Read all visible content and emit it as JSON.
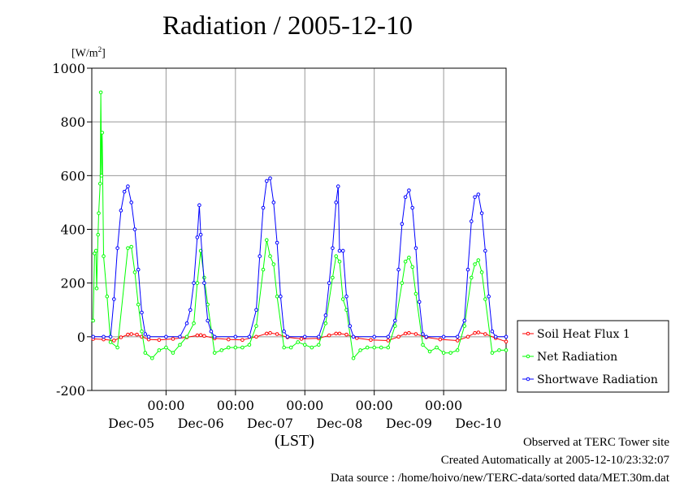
{
  "title": "Radiation / 2005-12-10",
  "ylabel_unit": "[W/m",
  "ylabel_sup": "2",
  "ylabel_close": "]",
  "xlabel": "(LST)",
  "footer": {
    "observed": "Observed at TERC Tower site",
    "created": "Created Automatically at 2005-12-10/23:32:07",
    "source": "Data source : /home/hoivo/new/TERC-data/sorted  data/MET.30m.dat"
  },
  "colors": {
    "soil": "#ff0000",
    "net": "#00ff00",
    "shortwave": "#0000ff",
    "grid": "#999999"
  },
  "chart_data": {
    "type": "line",
    "title": "Radiation / 2005-12-10",
    "ylabel": "[W/m2]",
    "xlabel": "(LST)",
    "ylim": [
      -200,
      1000
    ],
    "yticks": [
      "1000",
      "800",
      "600",
      "400",
      "200",
      "0",
      "-200"
    ],
    "x_unit": "days",
    "xlim": [
      -0.07,
      5.9
    ],
    "time_ticks": [
      {
        "x": 1,
        "label": "00:00"
      },
      {
        "x": 2,
        "label": "00:00"
      },
      {
        "x": 3,
        "label": "00:00"
      },
      {
        "x": 4,
        "label": "00:00"
      },
      {
        "x": 5,
        "label": "00:00"
      }
    ],
    "date_labels": [
      {
        "x": 0.5,
        "label": "Dec-05"
      },
      {
        "x": 1.5,
        "label": "Dec-06"
      },
      {
        "x": 2.5,
        "label": "Dec-07"
      },
      {
        "x": 3.5,
        "label": "Dec-08"
      },
      {
        "x": 4.5,
        "label": "Dec-09"
      },
      {
        "x": 5.5,
        "label": "Dec-10"
      }
    ],
    "grid": true,
    "legend_position": "right",
    "series": [
      {
        "name": "Soil Heat Flux 1",
        "color_key": "soil",
        "points": [
          [
            -0.05,
            -8
          ],
          [
            0.1,
            -10
          ],
          [
            0.25,
            -14
          ],
          [
            0.35,
            -2
          ],
          [
            0.45,
            8
          ],
          [
            0.5,
            10
          ],
          [
            0.58,
            8
          ],
          [
            0.65,
            0
          ],
          [
            0.75,
            -10
          ],
          [
            0.9,
            -12
          ],
          [
            1.1,
            -8
          ],
          [
            1.3,
            -2
          ],
          [
            1.45,
            5
          ],
          [
            1.5,
            6
          ],
          [
            1.55,
            3
          ],
          [
            1.7,
            -6
          ],
          [
            1.9,
            -10
          ],
          [
            2.1,
            -12
          ],
          [
            2.3,
            0
          ],
          [
            2.45,
            12
          ],
          [
            2.5,
            14
          ],
          [
            2.6,
            10
          ],
          [
            2.75,
            -2
          ],
          [
            2.95,
            -8
          ],
          [
            3.2,
            -6
          ],
          [
            3.35,
            5
          ],
          [
            3.45,
            12
          ],
          [
            3.5,
            12
          ],
          [
            3.6,
            8
          ],
          [
            3.75,
            -5
          ],
          [
            3.95,
            -12
          ],
          [
            4.2,
            -14
          ],
          [
            4.35,
            0
          ],
          [
            4.45,
            12
          ],
          [
            4.5,
            14
          ],
          [
            4.6,
            10
          ],
          [
            4.75,
            -2
          ],
          [
            4.95,
            -10
          ],
          [
            5.2,
            -14
          ],
          [
            5.35,
            0
          ],
          [
            5.45,
            14
          ],
          [
            5.5,
            16
          ],
          [
            5.6,
            10
          ],
          [
            5.75,
            -5
          ],
          [
            5.9,
            -18
          ]
        ]
      },
      {
        "name": "Net Radiation",
        "color_key": "net",
        "points": [
          [
            -0.05,
            60
          ],
          [
            -0.03,
            310
          ],
          [
            -0.01,
            320
          ],
          [
            0.0,
            180
          ],
          [
            0.02,
            380
          ],
          [
            0.03,
            460
          ],
          [
            0.05,
            570
          ],
          [
            0.06,
            910
          ],
          [
            0.07,
            600
          ],
          [
            0.08,
            760
          ],
          [
            0.1,
            300
          ],
          [
            0.15,
            150
          ],
          [
            0.2,
            -20
          ],
          [
            0.3,
            -40
          ],
          [
            0.45,
            330
          ],
          [
            0.5,
            335
          ],
          [
            0.55,
            240
          ],
          [
            0.6,
            120
          ],
          [
            0.65,
            20
          ],
          [
            0.7,
            -60
          ],
          [
            0.8,
            -80
          ],
          [
            0.9,
            -50
          ],
          [
            1.0,
            -40
          ],
          [
            1.1,
            -60
          ],
          [
            1.2,
            -30
          ],
          [
            1.3,
            0
          ],
          [
            1.4,
            50
          ],
          [
            1.45,
            200
          ],
          [
            1.5,
            320
          ],
          [
            1.55,
            220
          ],
          [
            1.6,
            120
          ],
          [
            1.7,
            -60
          ],
          [
            1.8,
            -50
          ],
          [
            1.9,
            -40
          ],
          [
            2.0,
            -40
          ],
          [
            2.1,
            -40
          ],
          [
            2.2,
            -30
          ],
          [
            2.3,
            40
          ],
          [
            2.4,
            250
          ],
          [
            2.45,
            360
          ],
          [
            2.5,
            300
          ],
          [
            2.55,
            270
          ],
          [
            2.6,
            150
          ],
          [
            2.7,
            -40
          ],
          [
            2.8,
            -40
          ],
          [
            2.9,
            -20
          ],
          [
            3.0,
            -30
          ],
          [
            3.1,
            -40
          ],
          [
            3.2,
            -30
          ],
          [
            3.3,
            50
          ],
          [
            3.4,
            220
          ],
          [
            3.45,
            300
          ],
          [
            3.5,
            280
          ],
          [
            3.55,
            140
          ],
          [
            3.6,
            100
          ],
          [
            3.7,
            -80
          ],
          [
            3.8,
            -50
          ],
          [
            3.9,
            -40
          ],
          [
            4.0,
            -40
          ],
          [
            4.1,
            -40
          ],
          [
            4.2,
            -40
          ],
          [
            4.3,
            40
          ],
          [
            4.4,
            200
          ],
          [
            4.45,
            280
          ],
          [
            4.5,
            295
          ],
          [
            4.55,
            260
          ],
          [
            4.6,
            160
          ],
          [
            4.7,
            -30
          ],
          [
            4.8,
            -55
          ],
          [
            4.9,
            -40
          ],
          [
            5.0,
            -60
          ],
          [
            5.1,
            -60
          ],
          [
            5.2,
            -50
          ],
          [
            5.3,
            40
          ],
          [
            5.4,
            220
          ],
          [
            5.45,
            270
          ],
          [
            5.5,
            285
          ],
          [
            5.55,
            240
          ],
          [
            5.6,
            140
          ],
          [
            5.7,
            -60
          ],
          [
            5.8,
            -50
          ],
          [
            5.9,
            -50
          ]
        ]
      },
      {
        "name": "Shortwave Radiation",
        "color_key": "shortwave",
        "points": [
          [
            -0.05,
            0
          ],
          [
            0.1,
            0
          ],
          [
            0.2,
            0
          ],
          [
            0.25,
            140
          ],
          [
            0.3,
            330
          ],
          [
            0.35,
            470
          ],
          [
            0.4,
            540
          ],
          [
            0.45,
            560
          ],
          [
            0.5,
            500
          ],
          [
            0.55,
            400
          ],
          [
            0.6,
            250
          ],
          [
            0.65,
            90
          ],
          [
            0.7,
            10
          ],
          [
            0.75,
            0
          ],
          [
            1.0,
            0
          ],
          [
            1.2,
            0
          ],
          [
            1.3,
            50
          ],
          [
            1.35,
            100
          ],
          [
            1.4,
            200
          ],
          [
            1.45,
            370
          ],
          [
            1.48,
            490
          ],
          [
            1.5,
            380
          ],
          [
            1.55,
            200
          ],
          [
            1.6,
            60
          ],
          [
            1.65,
            20
          ],
          [
            1.7,
            0
          ],
          [
            2.0,
            0
          ],
          [
            2.2,
            0
          ],
          [
            2.3,
            100
          ],
          [
            2.35,
            300
          ],
          [
            2.4,
            480
          ],
          [
            2.45,
            580
          ],
          [
            2.5,
            590
          ],
          [
            2.55,
            500
          ],
          [
            2.6,
            350
          ],
          [
            2.65,
            150
          ],
          [
            2.7,
            20
          ],
          [
            2.75,
            0
          ],
          [
            3.0,
            0
          ],
          [
            3.2,
            0
          ],
          [
            3.3,
            80
          ],
          [
            3.35,
            200
          ],
          [
            3.4,
            330
          ],
          [
            3.45,
            500
          ],
          [
            3.48,
            560
          ],
          [
            3.5,
            320
          ],
          [
            3.55,
            320
          ],
          [
            3.6,
            150
          ],
          [
            3.65,
            40
          ],
          [
            3.7,
            0
          ],
          [
            4.0,
            0
          ],
          [
            4.2,
            0
          ],
          [
            4.3,
            60
          ],
          [
            4.35,
            250
          ],
          [
            4.4,
            420
          ],
          [
            4.45,
            520
          ],
          [
            4.5,
            545
          ],
          [
            4.55,
            480
          ],
          [
            4.6,
            330
          ],
          [
            4.65,
            130
          ],
          [
            4.7,
            10
          ],
          [
            4.75,
            0
          ],
          [
            5.0,
            0
          ],
          [
            5.2,
            0
          ],
          [
            5.3,
            60
          ],
          [
            5.35,
            250
          ],
          [
            5.4,
            430
          ],
          [
            5.45,
            520
          ],
          [
            5.5,
            530
          ],
          [
            5.55,
            460
          ],
          [
            5.6,
            320
          ],
          [
            5.65,
            150
          ],
          [
            5.7,
            20
          ],
          [
            5.75,
            0
          ],
          [
            5.9,
            0
          ]
        ]
      }
    ]
  }
}
